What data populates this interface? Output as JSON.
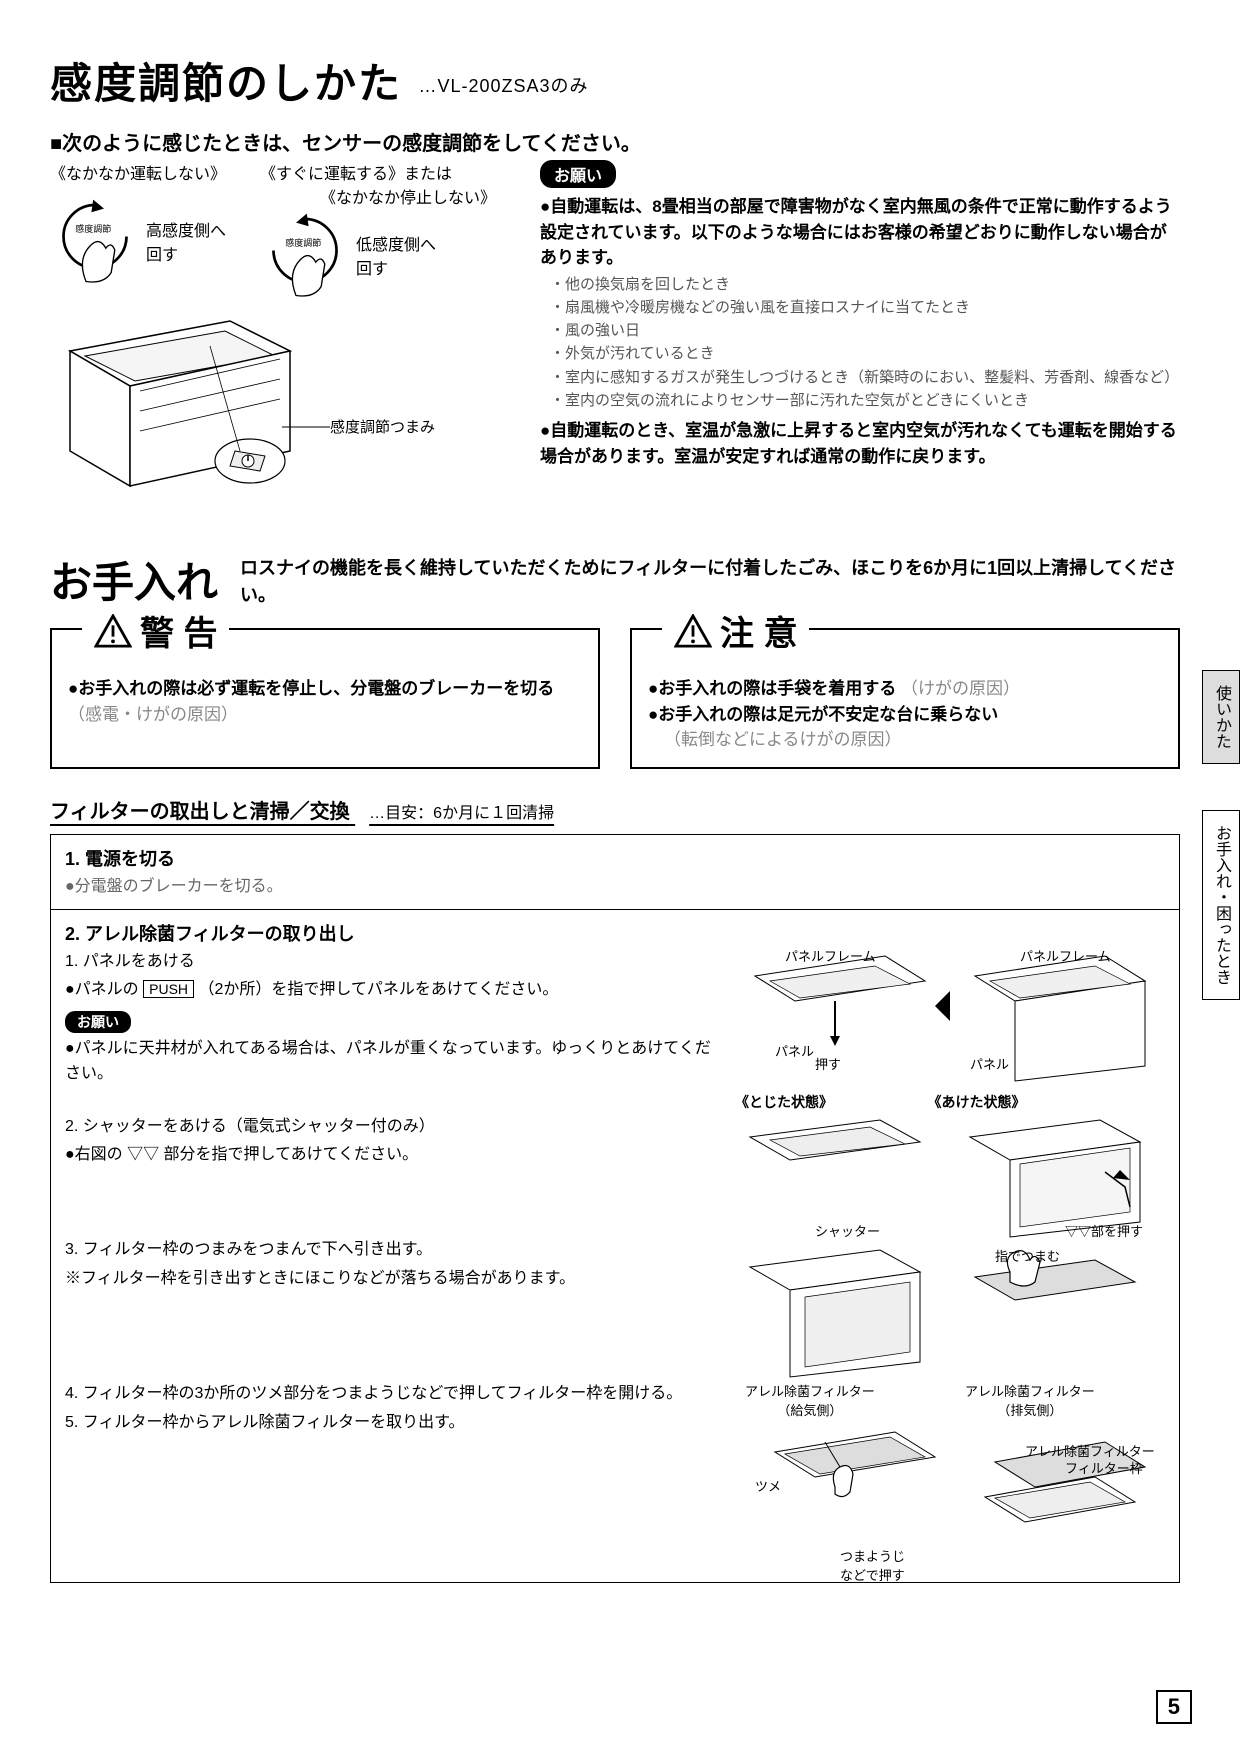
{
  "section1": {
    "title": "感度調節のしかた",
    "model": "…VL-200ZSA3のみ",
    "lead": "次のように感じたときは、センサーの感度調節をしてください。",
    "blockA": {
      "cond": "《なかなか運転しない》",
      "knob": "感度調節",
      "action": "高感度側へ\n回す"
    },
    "blockB": {
      "cond1": "《すぐに運転する》または",
      "cond2": "《なかなか停止しない》",
      "knob": "感度調節",
      "action": "低感度側へ\n回す"
    },
    "knob_label": "感度調節つまみ",
    "notice_pill": "お願い",
    "notice1": "●自動運転は、8畳相当の部屋で障害物がなく室内無風の条件で正常に動作するよう設定されています。以下のような場合にはお客様の希望どおりに動作しない場合があります。",
    "notice1_items": [
      "他の換気扇を回したとき",
      "扇風機や冷暖房機などの強い風を直接ロスナイに当てたとき",
      "風の強い日",
      "外気が汚れているとき",
      "室内に感知するガスが発生しつづけるとき（新築時のにおい、整髪料、芳香剤、線香など）",
      "室内の空気の流れによりセンサー部に汚れた空気がとどきにくいとき"
    ],
    "notice2": "●自動運転のとき、室温が急激に上昇すると室内空気が汚れなくても運転を開始する場合があります。室温が安定すれば通常の動作に戻ります。"
  },
  "section2": {
    "title": "お手入れ",
    "desc": "ロスナイの機能を長く維持していただくためにフィルターに付着したごみ、ほこりを6か月に1回以上清掃してください。",
    "warn": {
      "head": "警 告",
      "text_bold": "●お手入れの際は必ず運転を停止し、分電盤のブレーカーを切る",
      "text_gray": "（感電・けがの原因）"
    },
    "caution": {
      "head": "注 意",
      "line1_bold": "●お手入れの際は手袋を着用する",
      "line1_gray": "（けがの原因）",
      "line2_bold": "●お手入れの際は足元が不安定な台に乗らない",
      "line2_gray": "（転倒などによるけがの原因）"
    },
    "filter_head": "フィルターの取出しと清掃／交換",
    "filter_sub": "…目安：6か月に１回清掃",
    "step1": {
      "title": "1. 電源を切る",
      "body": "●分電盤のブレーカーを切る。"
    },
    "step2": {
      "title": "2. アレル除菌フィルターの取り出し",
      "s1": "1. パネルをあける",
      "s1b_pre": "●パネルの",
      "s1b_push": "PUSH",
      "s1b_post": "（2か所）を指で押してパネルをあけてください。",
      "pill": "お願い",
      "pill_text": "●パネルに天井材が入れてある場合は、パネルが重くなっています。ゆっくりとあけてください。",
      "s2": "2. シャッターをあける（電気式シャッター付のみ）",
      "s2b": "●右図の ▽▽ 部分を指で押してあけてください。",
      "s3": "3. フィルター枠のつまみをつまんで下へ引き出す。",
      "s3b": "※フィルター枠を引き出すときにほこりなどが落ちる場合があります。",
      "s4": "4. フィルター枠の3か所のツメ部分をつまようじなどで押してフィルター枠を開ける。",
      "s5": "5. フィルター枠からアレル除菌フィルターを取り出す。",
      "diag": {
        "panel_frame": "パネルフレーム",
        "panel": "パネル",
        "push": "押す",
        "closed": "《とじた状態》",
        "open": "《あけた状態》",
        "shutter": "シャッター",
        "press_part": "▽▽部を押す",
        "pinch": "指でつまむ",
        "filter_supply": "アレル除菌フィルター\n（給気側）",
        "filter_exhaust": "アレル除菌フィルター\n（排気側）",
        "tab": "ツメ",
        "toothpick": "つまようじ\nなどで押す",
        "filter": "アレル除菌フィルター",
        "frame": "フィルター枠"
      }
    }
  },
  "tabs": {
    "t1": "使いかた",
    "t2": "お手入れ・困ったとき"
  },
  "page": "5"
}
